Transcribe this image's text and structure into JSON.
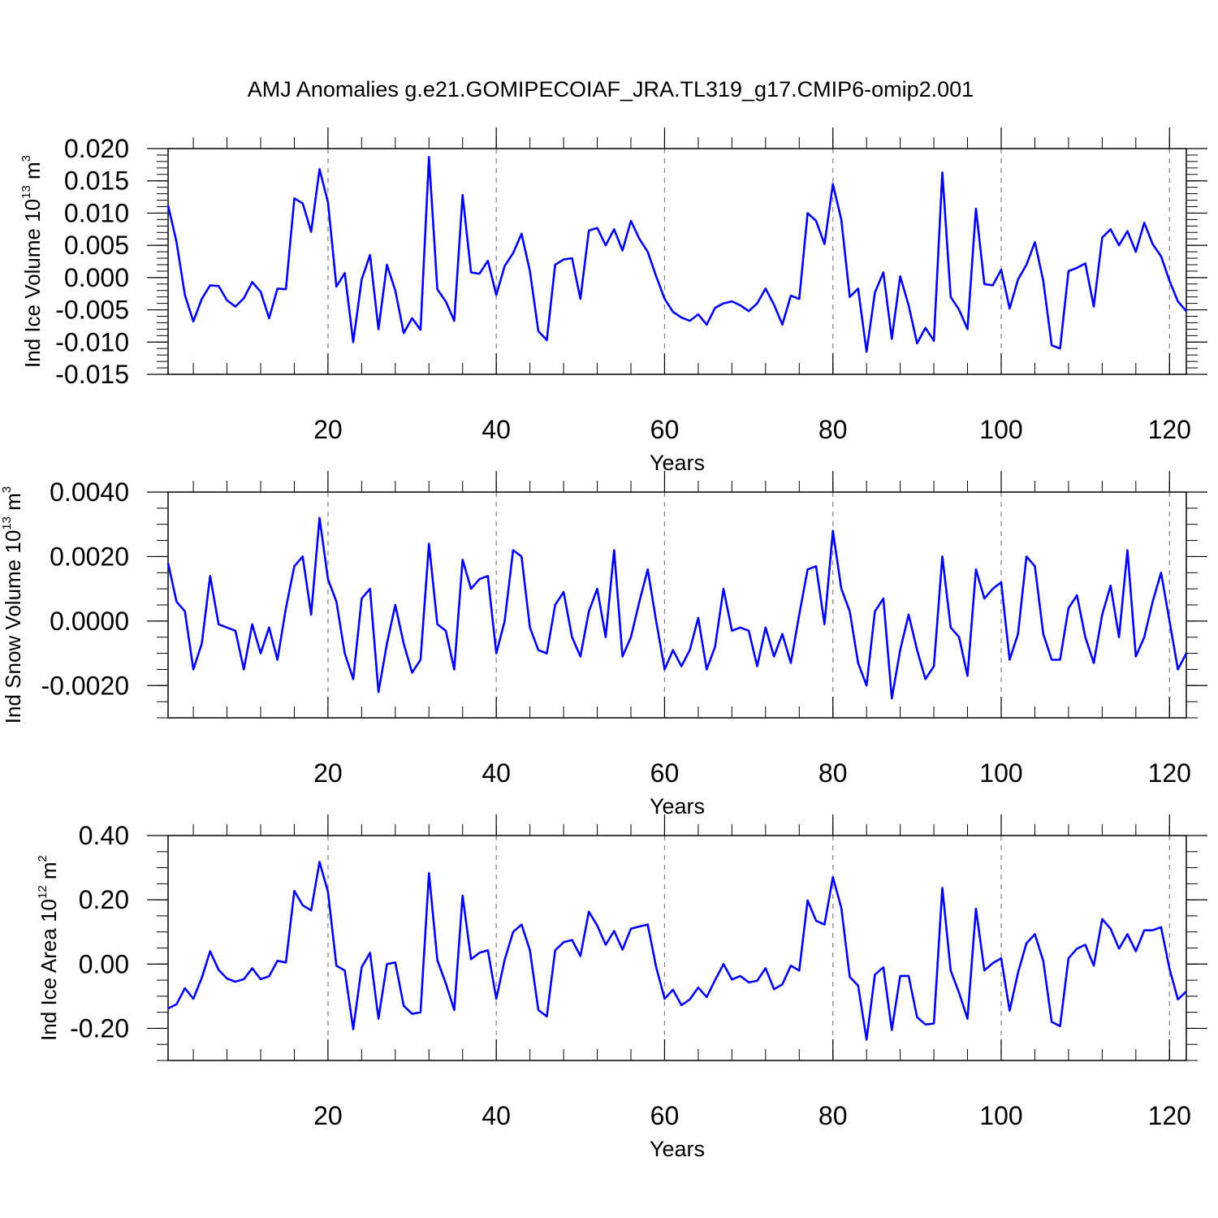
{
  "title": "AMJ Anomalies g.e21.GOMIPECOIAF_JRA.TL319_g17.CMIP6-omip2.001",
  "colors": {
    "line": "#0000ff",
    "axis": "#000000",
    "grid": "#808080",
    "background": "#ffffff"
  },
  "chart_data": [
    {
      "type": "line",
      "name": "ice-volume",
      "ylabel": {
        "text": "Ind Ice Volume 10",
        "exponent": "13",
        "unit": "m",
        "unit_exponent": "3"
      },
      "xlabel": "Years",
      "xlim": [
        1,
        122
      ],
      "ylim": [
        -0.015,
        0.02
      ],
      "yticks": [
        -0.015,
        -0.01,
        -0.005,
        0.0,
        0.005,
        0.01,
        0.015,
        0.02
      ],
      "ytick_labels": [
        "-0.015",
        "-0.010",
        "-0.005",
        "0.000",
        "0.005",
        "0.010",
        "0.015",
        "0.020"
      ],
      "yminor": 0.001,
      "xticks": [
        20,
        40,
        60,
        80,
        100,
        120
      ],
      "xtick_labels": [
        "20",
        "40",
        "60",
        "80",
        "100",
        "120"
      ],
      "xminor": 4,
      "vgrid": [
        20,
        40,
        60,
        80,
        100,
        120
      ],
      "values": [
        0.0112,
        0.0055,
        -0.0027,
        -0.0068,
        -0.0033,
        -0.0012,
        -0.0013,
        -0.0035,
        -0.0045,
        -0.0032,
        -0.0007,
        -0.0022,
        -0.0063,
        -0.0017,
        -0.0018,
        0.0123,
        0.0115,
        0.0071,
        0.0168,
        0.0117,
        -0.0014,
        0.0007,
        -0.01,
        -0.0003,
        0.0035,
        -0.008,
        0.002,
        -0.002,
        -0.0086,
        -0.0063,
        -0.0081,
        0.0187,
        -0.0018,
        -0.0037,
        -0.0067,
        0.0128,
        0.0008,
        0.0006,
        0.0026,
        -0.0027,
        0.0018,
        0.0038,
        0.0068,
        0.001,
        -0.0083,
        -0.0097,
        0.002,
        0.0028,
        0.003,
        -0.0033,
        0.0073,
        0.0077,
        0.005,
        0.0075,
        0.0042,
        0.0088,
        0.006,
        0.004,
        0.0002,
        -0.0033,
        -0.0053,
        -0.0062,
        -0.0067,
        -0.0057,
        -0.0073,
        -0.0047,
        -0.004,
        -0.0037,
        -0.0043,
        -0.0052,
        -0.004,
        -0.0017,
        -0.0042,
        -0.0073,
        -0.0028,
        -0.0033,
        0.01,
        0.0088,
        0.0052,
        0.0145,
        0.009,
        -0.003,
        -0.0017,
        -0.0115,
        -0.0023,
        0.0008,
        -0.0095,
        0.0002,
        -0.0043,
        -0.0102,
        -0.0078,
        -0.0098,
        0.0163,
        -0.003,
        -0.005,
        -0.008,
        0.0107,
        -0.001,
        -0.0012,
        0.0012,
        -0.0048,
        -0.0003,
        0.002,
        0.0055,
        -0.0005,
        -0.0105,
        -0.011,
        0.001,
        0.0015,
        0.0022,
        -0.0045,
        0.0062,
        0.0075,
        0.005,
        0.0072,
        0.004,
        0.0085,
        0.0052,
        0.0033,
        -0.0005,
        -0.0037,
        -0.0052
      ]
    },
    {
      "type": "line",
      "name": "snow-volume",
      "ylabel": {
        "text": "Ind Snow Volume 10",
        "exponent": "13",
        "unit": "m",
        "unit_exponent": "3"
      },
      "xlabel": "Years",
      "xlim": [
        1,
        122
      ],
      "ylim": [
        -0.003,
        0.004
      ],
      "yticks": [
        -0.002,
        0.0,
        0.002,
        0.004
      ],
      "ytick_labels": [
        "-0.0020",
        "0.0000",
        "0.0020",
        "0.0040"
      ],
      "yminor": 0.0005,
      "xticks": [
        20,
        40,
        60,
        80,
        100,
        120
      ],
      "xtick_labels": [
        "20",
        "40",
        "60",
        "80",
        "100",
        "120"
      ],
      "xminor": 4,
      "vgrid": [
        20,
        40,
        60,
        80,
        100,
        120
      ],
      "values": [
        0.0018,
        0.0006,
        0.0003,
        -0.0015,
        -0.0007,
        0.0014,
        -0.0001,
        -0.0002,
        -0.0003,
        -0.0015,
        -0.0001,
        -0.001,
        -0.0002,
        -0.0012,
        0.0004,
        0.0017,
        0.002,
        0.0002,
        0.0032,
        0.0013,
        0.0006,
        -0.001,
        -0.0018,
        0.0007,
        0.001,
        -0.0022,
        -0.0007,
        0.0005,
        -0.0007,
        -0.0016,
        -0.0012,
        0.0024,
        -0.0001,
        -0.0003,
        -0.0015,
        0.0019,
        0.001,
        0.0013,
        0.0014,
        -0.001,
        0.0,
        0.0022,
        0.002,
        -0.0002,
        -0.0009,
        -0.001,
        0.0005,
        0.0009,
        -0.0005,
        -0.0011,
        0.0003,
        0.001,
        -0.0005,
        0.0022,
        -0.0011,
        -0.0005,
        0.0006,
        0.0016,
        0.0,
        -0.0015,
        -0.0009,
        -0.0014,
        -0.0009,
        0.0001,
        -0.0015,
        -0.0008,
        0.001,
        -0.0003,
        -0.0002,
        -0.0003,
        -0.0014,
        -0.0002,
        -0.0011,
        -0.0004,
        -0.0013,
        0.0002,
        0.0016,
        0.0017,
        -0.0001,
        0.0028,
        0.001,
        0.0003,
        -0.0013,
        -0.002,
        0.0003,
        0.0007,
        -0.0024,
        -0.0009,
        0.0002,
        -0.0009,
        -0.0018,
        -0.0014,
        0.002,
        -0.0002,
        -0.0005,
        -0.0017,
        0.0016,
        0.0007,
        0.001,
        0.0012,
        -0.0012,
        -0.0004,
        0.002,
        0.0017,
        -0.0004,
        -0.0012,
        -0.0012,
        0.0004,
        0.0008,
        -0.0005,
        -0.0013,
        0.0002,
        0.0011,
        -0.0005,
        0.0022,
        -0.0011,
        -0.0005,
        0.0006,
        0.0015,
        0.0,
        -0.0015,
        -0.001
      ]
    },
    {
      "type": "line",
      "name": "ice-area",
      "ylabel": {
        "text": "Ind Ice Area 10",
        "exponent": "12",
        "unit": "m",
        "unit_exponent": "2"
      },
      "xlabel": "Years",
      "xlim": [
        1,
        122
      ],
      "ylim": [
        -0.3,
        0.4
      ],
      "yticks": [
        -0.2,
        0.0,
        0.2,
        0.4
      ],
      "ytick_labels": [
        "-0.20",
        "0.00",
        "0.20",
        "0.40"
      ],
      "yminor": 0.05,
      "xticks": [
        20,
        40,
        60,
        80,
        100,
        120
      ],
      "xtick_labels": [
        "20",
        "40",
        "60",
        "80",
        "100",
        "120"
      ],
      "xminor": 4,
      "vgrid": [
        20,
        40,
        60,
        80,
        100,
        120
      ],
      "values": [
        -0.138,
        -0.125,
        -0.075,
        -0.108,
        -0.043,
        0.04,
        -0.018,
        -0.045,
        -0.055,
        -0.047,
        -0.013,
        -0.047,
        -0.038,
        0.01,
        0.005,
        0.228,
        0.183,
        0.167,
        0.318,
        0.225,
        -0.005,
        -0.02,
        -0.203,
        -0.01,
        0.035,
        -0.17,
        0.0,
        0.005,
        -0.13,
        -0.155,
        -0.15,
        0.283,
        0.012,
        -0.06,
        -0.143,
        0.213,
        0.015,
        0.035,
        0.043,
        -0.108,
        0.013,
        0.1,
        0.123,
        0.043,
        -0.143,
        -0.163,
        0.043,
        0.068,
        0.075,
        0.025,
        0.163,
        0.12,
        0.06,
        0.103,
        0.045,
        0.11,
        0.117,
        0.123,
        -0.01,
        -0.108,
        -0.08,
        -0.128,
        -0.11,
        -0.073,
        -0.103,
        -0.05,
        0.0,
        -0.048,
        -0.037,
        -0.057,
        -0.052,
        -0.013,
        -0.078,
        -0.063,
        -0.005,
        -0.02,
        0.198,
        0.135,
        0.123,
        0.27,
        0.175,
        -0.04,
        -0.067,
        -0.235,
        -0.033,
        -0.01,
        -0.205,
        -0.037,
        -0.037,
        -0.165,
        -0.188,
        -0.185,
        0.237,
        -0.02,
        -0.09,
        -0.17,
        0.172,
        -0.02,
        0.003,
        0.018,
        -0.145,
        -0.027,
        0.065,
        0.093,
        0.01,
        -0.18,
        -0.193,
        0.018,
        0.048,
        0.06,
        -0.005,
        0.14,
        0.11,
        0.048,
        0.093,
        0.04,
        0.105,
        0.105,
        0.115,
        -0.015,
        -0.11,
        -0.085
      ]
    }
  ]
}
